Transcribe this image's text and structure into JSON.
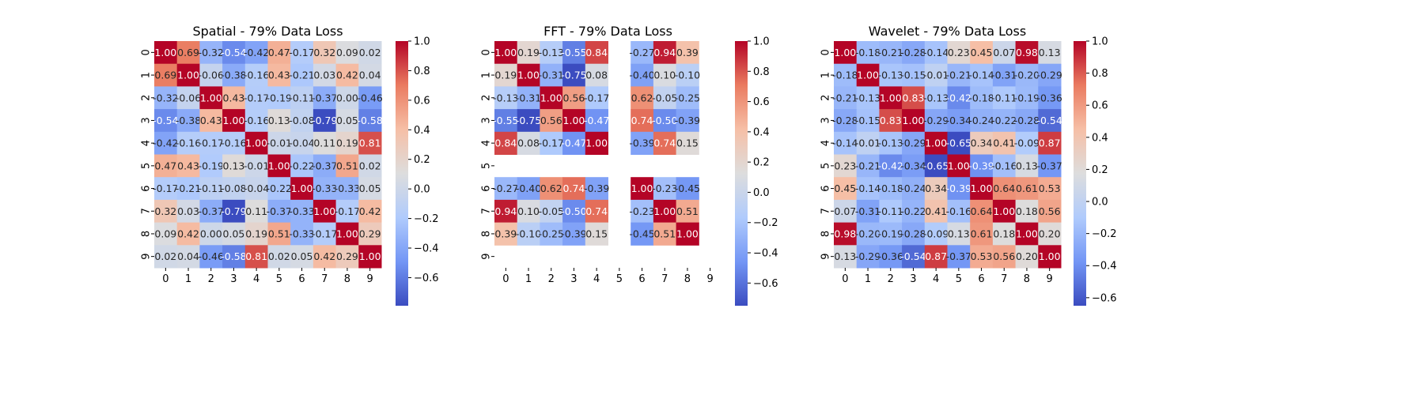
{
  "colormap": {
    "name": "coolwarm",
    "colors": [
      "#3b4cc0",
      "#7396f5",
      "#b0cbfc",
      "#dddddd",
      "#f6bfa6",
      "#ea7b60",
      "#b40426"
    ]
  },
  "chart_data": [
    {
      "type": "heatmap",
      "title": "Spatial - 79% Data Loss",
      "labels": [
        "0",
        "1",
        "2",
        "3",
        "4",
        "5",
        "6",
        "7",
        "8",
        "9"
      ],
      "vmin": -0.79,
      "vmax": 1.0,
      "colorbar_ticks": [
        "-0.6",
        "-0.4",
        "-0.2",
        "0.0",
        "0.2",
        "0.4",
        "0.6",
        "0.8",
        "1.0"
      ],
      "values": [
        [
          1.0,
          0.69,
          -0.32,
          -0.54,
          -0.42,
          0.47,
          -0.17,
          0.32,
          0.09,
          0.02
        ],
        [
          0.69,
          1.0,
          -0.06,
          -0.38,
          -0.16,
          0.43,
          -0.21,
          0.03,
          0.42,
          0.04
        ],
        [
          -0.32,
          -0.06,
          1.0,
          0.43,
          -0.17,
          -0.19,
          -0.11,
          -0.37,
          0.0,
          -0.46
        ],
        [
          -0.54,
          -0.38,
          0.43,
          1.0,
          -0.16,
          0.13,
          -0.08,
          -0.79,
          0.05,
          -0.58
        ],
        [
          -0.42,
          -0.16,
          -0.17,
          -0.16,
          1.0,
          -0.01,
          -0.04,
          0.11,
          0.19,
          0.81
        ],
        [
          0.47,
          0.43,
          -0.19,
          0.13,
          -0.01,
          1.0,
          -0.22,
          -0.37,
          0.51,
          0.02
        ],
        [
          -0.17,
          -0.21,
          -0.11,
          -0.08,
          -0.04,
          -0.22,
          1.0,
          -0.33,
          -0.33,
          0.05
        ],
        [
          0.32,
          0.03,
          -0.37,
          -0.79,
          0.11,
          -0.37,
          -0.33,
          1.0,
          -0.17,
          0.42
        ],
        [
          0.09,
          0.42,
          0.0,
          0.05,
          0.19,
          0.51,
          -0.33,
          -0.17,
          1.0,
          0.29
        ],
        [
          0.02,
          0.04,
          -0.46,
          -0.58,
          0.81,
          0.02,
          0.05,
          0.42,
          0.29,
          1.0
        ]
      ]
    },
    {
      "type": "heatmap",
      "title": "FFT - 79% Data Loss",
      "labels": [
        "0",
        "1",
        "2",
        "3",
        "4",
        "5",
        "6",
        "7",
        "8",
        "9"
      ],
      "vmin": -0.75,
      "vmax": 1.0,
      "colorbar_ticks": [
        "-0.6",
        "-0.4",
        "-0.2",
        "0.0",
        "0.2",
        "0.4",
        "0.6",
        "0.8",
        "1.0"
      ],
      "values": [
        [
          1.0,
          0.19,
          -0.13,
          -0.55,
          0.84,
          null,
          -0.27,
          0.94,
          0.39,
          null
        ],
        [
          0.19,
          1.0,
          -0.31,
          -0.75,
          0.08,
          null,
          -0.4,
          0.1,
          -0.1,
          null
        ],
        [
          -0.13,
          -0.31,
          1.0,
          0.56,
          -0.17,
          null,
          0.62,
          -0.05,
          -0.25,
          null
        ],
        [
          -0.55,
          -0.75,
          0.56,
          1.0,
          -0.47,
          null,
          0.74,
          -0.5,
          -0.39,
          null
        ],
        [
          0.84,
          0.08,
          -0.17,
          -0.47,
          1.0,
          null,
          -0.39,
          0.74,
          0.15,
          null
        ],
        [
          null,
          null,
          null,
          null,
          null,
          null,
          null,
          null,
          null,
          null
        ],
        [
          -0.27,
          -0.4,
          0.62,
          0.74,
          -0.39,
          null,
          1.0,
          -0.23,
          -0.45,
          null
        ],
        [
          0.94,
          0.1,
          -0.05,
          -0.5,
          0.74,
          null,
          -0.23,
          1.0,
          0.51,
          null
        ],
        [
          0.39,
          -0.1,
          -0.25,
          -0.39,
          0.15,
          null,
          -0.45,
          0.51,
          1.0,
          null
        ],
        [
          null,
          null,
          null,
          null,
          null,
          null,
          null,
          null,
          null,
          null
        ]
      ]
    },
    {
      "type": "heatmap",
      "title": "Wavelet - 79% Data Loss",
      "labels": [
        "0",
        "1",
        "2",
        "3",
        "4",
        "5",
        "6",
        "7",
        "8",
        "9"
      ],
      "vmin": -0.65,
      "vmax": 1.0,
      "colorbar_ticks": [
        "-0.6",
        "-0.4",
        "-0.2",
        "0.0",
        "0.2",
        "0.4",
        "0.6",
        "0.8",
        "1.0"
      ],
      "values": [
        [
          1.0,
          -0.18,
          -0.21,
          -0.28,
          -0.14,
          0.23,
          0.45,
          0.07,
          0.98,
          0.13
        ],
        [
          -0.18,
          1.0,
          -0.13,
          -0.15,
          -0.01,
          -0.21,
          -0.14,
          -0.31,
          -0.2,
          -0.29
        ],
        [
          -0.21,
          -0.13,
          1.0,
          0.83,
          -0.13,
          -0.42,
          -0.18,
          -0.11,
          -0.19,
          -0.36
        ],
        [
          -0.28,
          -0.15,
          0.83,
          1.0,
          -0.29,
          -0.34,
          -0.24,
          -0.22,
          -0.28,
          -0.54
        ],
        [
          -0.14,
          -0.01,
          -0.13,
          -0.29,
          1.0,
          -0.65,
          0.34,
          0.41,
          -0.09,
          0.87
        ],
        [
          0.23,
          -0.21,
          -0.42,
          -0.34,
          -0.65,
          1.0,
          -0.39,
          -0.16,
          0.13,
          -0.37
        ],
        [
          0.45,
          -0.14,
          -0.18,
          -0.24,
          0.34,
          -0.39,
          1.0,
          0.64,
          0.61,
          0.53
        ],
        [
          0.07,
          -0.31,
          -0.11,
          -0.22,
          0.41,
          -0.16,
          0.64,
          1.0,
          0.18,
          0.56
        ],
        [
          0.98,
          -0.2,
          -0.19,
          -0.28,
          -0.09,
          0.13,
          0.61,
          0.18,
          1.0,
          0.2
        ],
        [
          0.13,
          -0.29,
          -0.36,
          -0.54,
          0.87,
          -0.37,
          0.53,
          0.56,
          0.2,
          1.0
        ]
      ]
    }
  ]
}
